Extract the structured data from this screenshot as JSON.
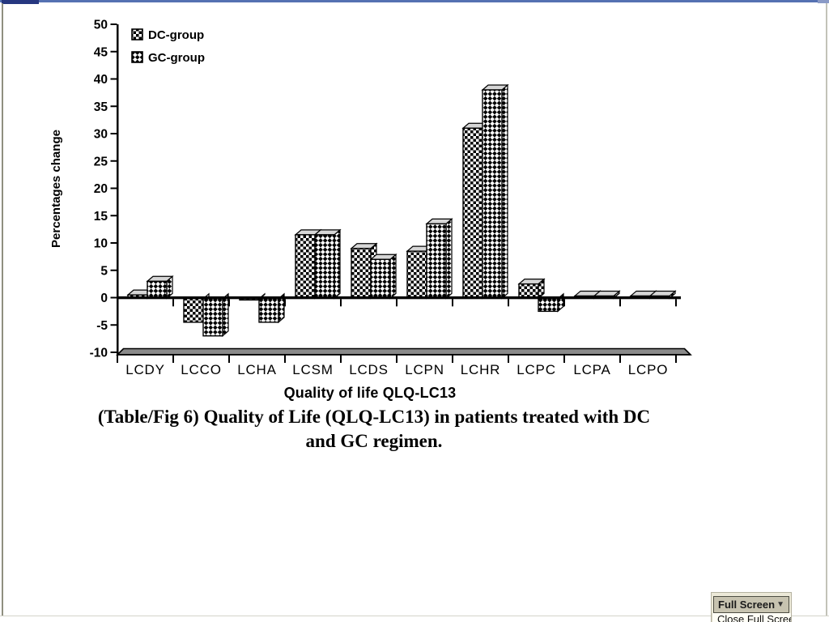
{
  "chart_data": {
    "type": "bar",
    "style": "3d-clustered-column",
    "title": "",
    "xlabel": "Quality of life QLQ-LC13",
    "ylabel": "Percentages change",
    "categories": [
      "LCDY",
      "LCCO",
      "LCHA",
      "LCSM",
      "LCDS",
      "LCPN",
      "LCHR",
      "LCPC",
      "LCPA",
      "LCPO"
    ],
    "series": [
      {
        "name": "DC-group",
        "pattern": "checkerboard",
        "values": [
          0.5,
          -4.5,
          -0.3,
          11.5,
          9,
          8.5,
          31,
          2.5,
          0.3,
          0.3
        ]
      },
      {
        "name": "GC-group",
        "pattern": "diagonal-checker",
        "values": [
          3,
          -7,
          -4.5,
          11.5,
          7,
          13.5,
          38,
          -2.5,
          0.3,
          0.3
        ]
      }
    ],
    "ylim": [
      -10,
      50
    ],
    "ytick_step": 5,
    "grid": false,
    "legend_position": "top-left",
    "bar_outline_color": "#000000",
    "floor_color": "#8a8a8a",
    "top_face_color": "#d6d6d6"
  },
  "caption": {
    "line1": "(Table/Fig 6) Quality of Life (QLQ-LC13) in patients treated with DC",
    "line2": "and GC regimen."
  },
  "fullscreen_control": {
    "button_label": "Full Screen",
    "dropdown_icon": "caret-down",
    "menu_item": "Close Full Screen"
  },
  "window": {
    "top_accent_color": "#5571b2",
    "top_accent_dark": "#263780"
  }
}
